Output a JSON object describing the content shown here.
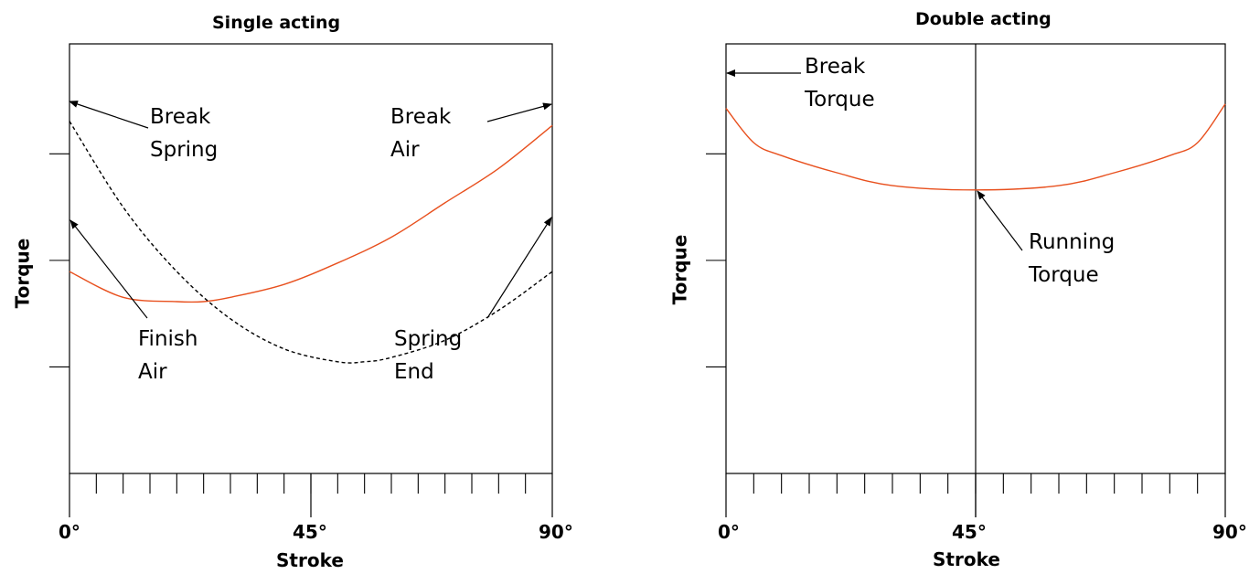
{
  "chart_data": [
    {
      "type": "line",
      "title": "Single acting",
      "xlabel": "Stroke",
      "ylabel": "Torque",
      "x_ticks": [
        "0°",
        "45°",
        "90°"
      ],
      "xlim": [
        0,
        90
      ],
      "x_minor_ticks": 18,
      "y_minor_ticks": 3,
      "colors": {
        "air": "#e8501e",
        "spring": "#000000"
      },
      "series": [
        {
          "style": "solid",
          "color": "#e8501e",
          "x": [
            0,
            10,
            20,
            25,
            30,
            40,
            50,
            60,
            70,
            80,
            90
          ],
          "y": [
            0.47,
            0.41,
            0.4,
            0.4,
            0.41,
            0.44,
            0.49,
            0.55,
            0.63,
            0.71,
            0.81
          ]
        },
        {
          "style": "dashed",
          "color": "#000000",
          "x": [
            0,
            10,
            20,
            30,
            40,
            50,
            55,
            60,
            70,
            80,
            90
          ],
          "y": [
            0.82,
            0.62,
            0.47,
            0.36,
            0.29,
            0.26,
            0.26,
            0.27,
            0.31,
            0.38,
            0.47
          ]
        }
      ],
      "annotations": [
        {
          "lines": [
            "Break",
            "Spring"
          ]
        },
        {
          "lines": [
            "Break",
            "Air"
          ]
        },
        {
          "lines": [
            "Finish",
            "Air"
          ]
        },
        {
          "lines": [
            "Spring",
            "End"
          ]
        }
      ]
    },
    {
      "type": "line",
      "title": "Double acting",
      "xlabel": "Stroke",
      "ylabel": "Torque",
      "x_ticks": [
        "0°",
        "45°",
        "90°"
      ],
      "xlim": [
        0,
        90
      ],
      "x_minor_ticks": 18,
      "y_minor_ticks": 3,
      "vline_x": 45,
      "series": [
        {
          "style": "solid",
          "color": "#e8501e",
          "x": [
            0,
            5,
            10,
            20,
            30,
            45,
            60,
            70,
            80,
            85,
            90
          ],
          "y": [
            0.85,
            0.77,
            0.74,
            0.7,
            0.67,
            0.66,
            0.67,
            0.7,
            0.74,
            0.77,
            0.86
          ]
        }
      ],
      "annotations": [
        {
          "lines": [
            "Break",
            "Torque"
          ]
        },
        {
          "lines": [
            "Running",
            "Torque"
          ]
        }
      ]
    }
  ]
}
